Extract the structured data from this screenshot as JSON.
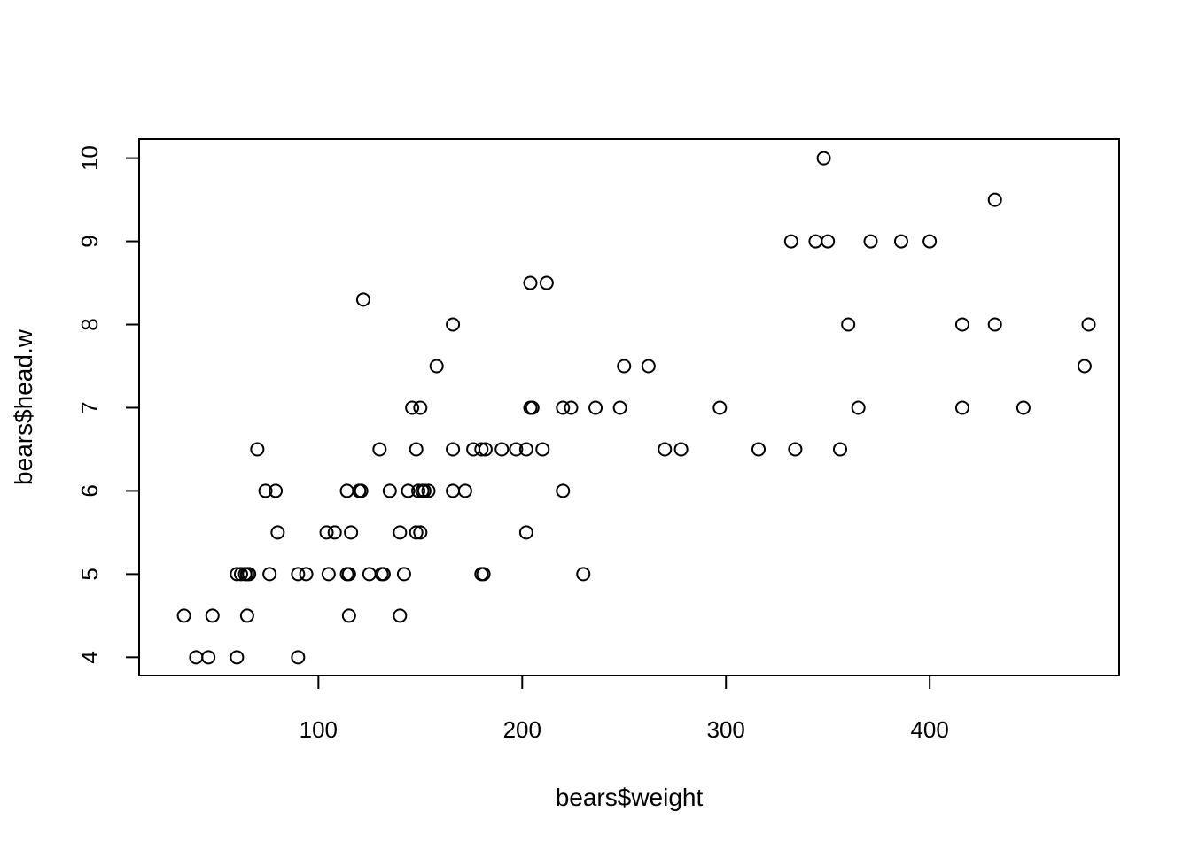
{
  "chart_data": {
    "type": "scatter",
    "xlabel": "bears$weight",
    "ylabel": "bears$head.w",
    "xlim": [
      12,
      493
    ],
    "ylim": [
      3.78,
      10.23
    ],
    "x_ticks": [
      100,
      200,
      300,
      400
    ],
    "y_ticks": [
      4,
      5,
      6,
      7,
      8,
      9,
      10
    ],
    "grid": false,
    "marker": "open-circle",
    "color": "#000000",
    "points": [
      [
        34,
        4.5
      ],
      [
        40,
        4.0
      ],
      [
        46,
        4.0
      ],
      [
        48,
        4.5
      ],
      [
        60,
        4.0
      ],
      [
        60,
        5.0
      ],
      [
        62,
        5.0
      ],
      [
        64,
        5.0
      ],
      [
        65,
        5.0
      ],
      [
        65,
        4.5
      ],
      [
        66,
        5.0
      ],
      [
        70,
        6.5
      ],
      [
        74,
        6.0
      ],
      [
        76,
        5.0
      ],
      [
        79,
        6.0
      ],
      [
        80,
        5.5
      ],
      [
        90,
        5.0
      ],
      [
        90,
        4.0
      ],
      [
        94,
        5.0
      ],
      [
        104,
        5.5
      ],
      [
        105,
        5.0
      ],
      [
        108,
        5.5
      ],
      [
        114,
        6.0
      ],
      [
        114,
        5.0
      ],
      [
        115,
        5.0
      ],
      [
        115,
        4.5
      ],
      [
        116,
        5.5
      ],
      [
        120,
        6.0
      ],
      [
        121,
        6.0
      ],
      [
        122,
        8.3
      ],
      [
        125,
        5.0
      ],
      [
        130,
        6.5
      ],
      [
        131,
        5.0
      ],
      [
        132,
        5.0
      ],
      [
        135,
        6.0
      ],
      [
        140,
        5.5
      ],
      [
        140,
        4.5
      ],
      [
        142,
        5.0
      ],
      [
        144,
        6.0
      ],
      [
        146,
        7.0
      ],
      [
        148,
        5.5
      ],
      [
        148,
        6.5
      ],
      [
        149,
        6.0
      ],
      [
        150,
        5.5
      ],
      [
        150,
        7.0
      ],
      [
        151,
        6.0
      ],
      [
        152,
        6.0
      ],
      [
        154,
        6.0
      ],
      [
        158,
        7.5
      ],
      [
        166,
        6.5
      ],
      [
        166,
        6.0
      ],
      [
        166,
        8.0
      ],
      [
        172,
        6.0
      ],
      [
        176,
        6.5
      ],
      [
        180,
        6.5
      ],
      [
        180,
        5.0
      ],
      [
        181,
        5.0
      ],
      [
        182,
        6.5
      ],
      [
        190,
        6.5
      ],
      [
        197,
        6.5
      ],
      [
        202,
        6.5
      ],
      [
        202,
        5.5
      ],
      [
        204,
        7.0
      ],
      [
        204,
        8.5
      ],
      [
        205,
        7.0
      ],
      [
        210,
        6.5
      ],
      [
        212,
        8.5
      ],
      [
        220,
        7.0
      ],
      [
        220,
        6.0
      ],
      [
        224,
        7.0
      ],
      [
        230,
        5.0
      ],
      [
        236,
        7.0
      ],
      [
        248,
        7.0
      ],
      [
        250,
        7.5
      ],
      [
        262,
        7.5
      ],
      [
        270,
        6.5
      ],
      [
        278,
        6.5
      ],
      [
        297,
        7.0
      ],
      [
        316,
        6.5
      ],
      [
        332,
        9.0
      ],
      [
        334,
        6.5
      ],
      [
        344,
        9.0
      ],
      [
        348,
        10.0
      ],
      [
        350,
        9.0
      ],
      [
        356,
        6.5
      ],
      [
        360,
        8.0
      ],
      [
        365,
        7.0
      ],
      [
        371,
        9.0
      ],
      [
        386,
        9.0
      ],
      [
        400,
        9.0
      ],
      [
        416,
        8.0
      ],
      [
        416,
        7.0
      ],
      [
        432,
        9.5
      ],
      [
        432,
        8.0
      ],
      [
        446,
        7.0
      ],
      [
        476,
        7.5
      ],
      [
        478,
        8.0
      ]
    ]
  }
}
